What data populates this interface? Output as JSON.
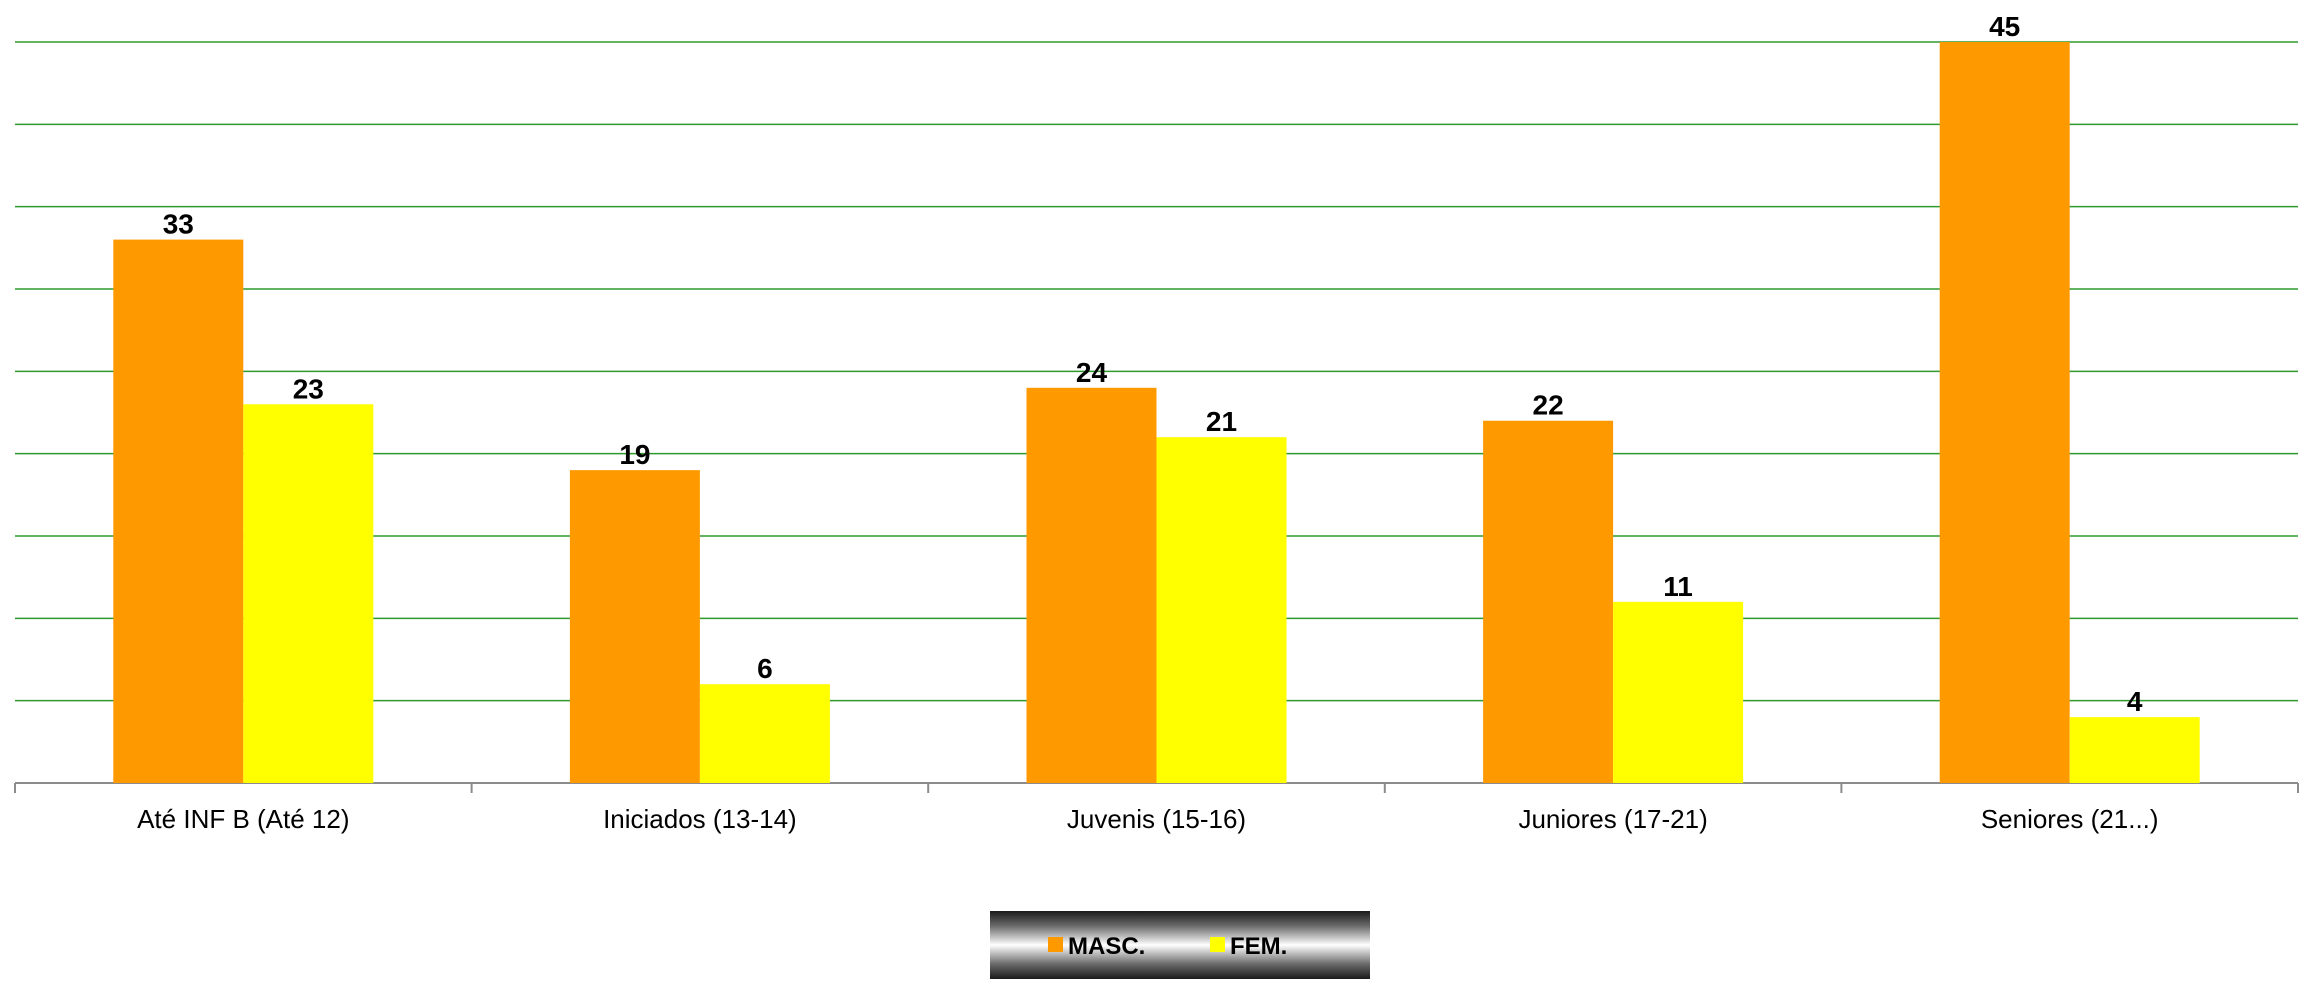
{
  "chart_data": {
    "type": "bar",
    "categories": [
      "Até INF B (Até 12)",
      "Iniciados (13-14)",
      "Juvenis (15-16)",
      "Juniores (17-21)",
      "Seniores (21...)"
    ],
    "series": [
      {
        "name": "MASC.",
        "color": "#FF9900",
        "values": [
          33,
          19,
          24,
          22,
          45
        ]
      },
      {
        "name": "FEM.",
        "color": "#FFFF00",
        "values": [
          23,
          6,
          21,
          11,
          4
        ]
      }
    ],
    "ylim": [
      0,
      45
    ],
    "gridlines": true,
    "gridline_color": "#2E9A2E",
    "legend_position": "bottom",
    "title": "",
    "xlabel": "",
    "ylabel": ""
  }
}
